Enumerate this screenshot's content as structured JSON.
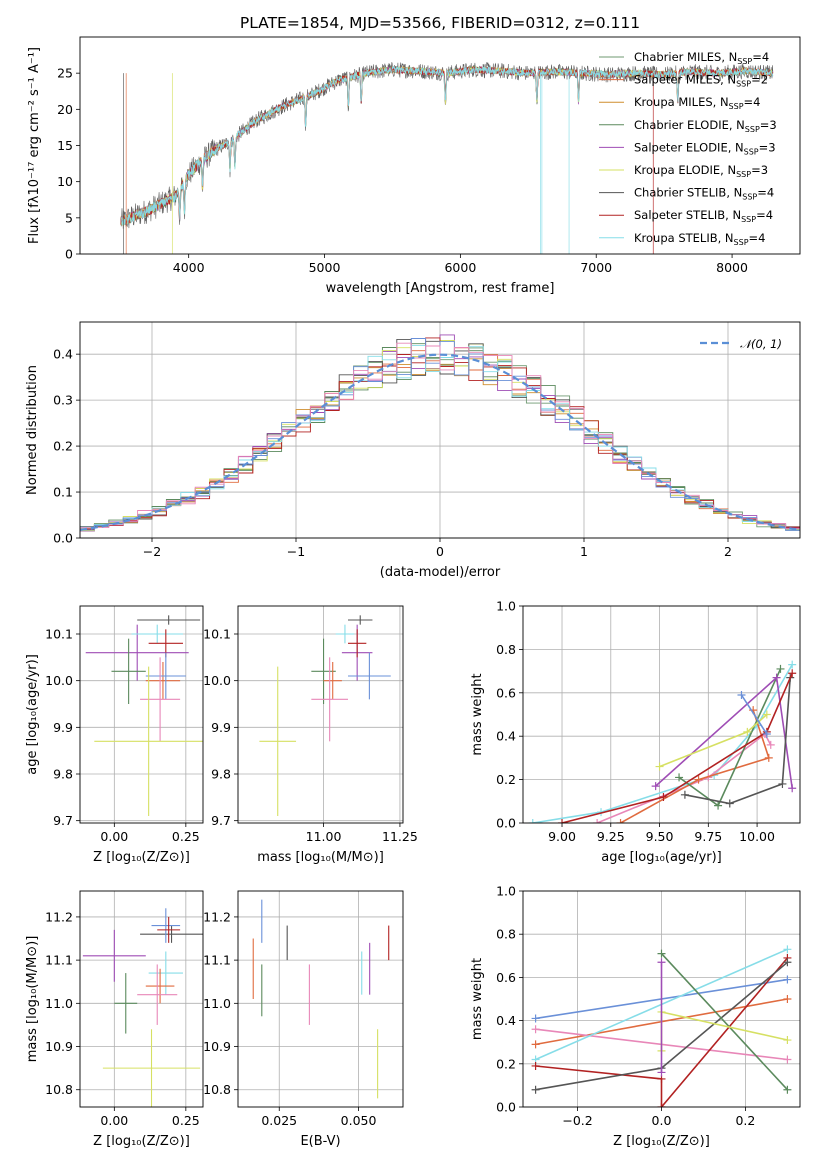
{
  "figure_title": "PLATE=1854, MJD=53566, FIBERID=0312, z=0.111",
  "colors": {
    "models": [
      "#6f9a72",
      "#e06b3f",
      "#cf8e2e",
      "#5b8a5d",
      "#9f4db5",
      "#d6e063",
      "#555555",
      "#b22222",
      "#86dde8"
    ],
    "extra_blue": "#6a90d8",
    "extra_pink": "#e887b8",
    "gauss": "#5a8fd6"
  },
  "chart_data": [
    {
      "id": "spectrum",
      "type": "line",
      "xlabel": "wavelength [Angstrom, rest frame]",
      "ylabel": "Flux [fλ10⁻¹⁷ erg cm⁻² s⁻¹ A⁻¹]",
      "xlim": [
        3200,
        8500
      ],
      "ylim": [
        0,
        30
      ],
      "xticks": [
        "4000",
        "5000",
        "6000",
        "7000",
        "8000"
      ],
      "yticks": [
        "0",
        "5",
        "10",
        "15",
        "20",
        "25"
      ],
      "legend_position": "right",
      "x": [
        3500,
        3700,
        3900,
        4000,
        4100,
        4200,
        4300,
        4500,
        4700,
        4900,
        5100,
        5300,
        5500,
        5700,
        5900,
        6100,
        6300,
        6500,
        6700,
        6900,
        7100,
        7300,
        7500,
        7700,
        7900,
        8100,
        8300
      ],
      "series": [
        {
          "name": "Chabrier MILES, N_SSP=4"
        },
        {
          "name": "Salpeter MILES, N_SSP=2"
        },
        {
          "name": "Kroupa MILES, N_SSP=4"
        },
        {
          "name": "Chabrier ELODIE, N_SSP=3"
        },
        {
          "name": "Salpeter ELODIE, N_SSP=3"
        },
        {
          "name": "Kroupa ELODIE, N_SSP=3"
        },
        {
          "name": "Chabrier STELIB, N_SSP=4"
        },
        {
          "name": "Salpeter STELIB, N_SSP=4"
        },
        {
          "name": "Kroupa STELIB, N_SSP=4"
        }
      ],
      "continuum": [
        4.5,
        6.0,
        8.0,
        11.0,
        13.0,
        14.5,
        15.5,
        18.5,
        20.5,
        22.0,
        24.0,
        25.0,
        25.5,
        25.3,
        25.0,
        25.5,
        25.3,
        25.0,
        25.2,
        25.0,
        24.8,
        25.0,
        24.8,
        25.2,
        25.0,
        25.3,
        25.0
      ]
    },
    {
      "id": "residuals",
      "type": "bar",
      "xlabel": "(data-model)/error",
      "ylabel": "Normed distribution",
      "xlim": [
        -2.5,
        2.5
      ],
      "ylim": [
        0,
        0.47
      ],
      "xticks": [
        "−2",
        "−1",
        "0",
        "1",
        "2"
      ],
      "yticks": [
        "0.0",
        "0.1",
        "0.2",
        "0.3",
        "0.4"
      ],
      "grid": true,
      "bin_width": 0.1,
      "legend": "𝒩(0, 1)",
      "gaussian": {
        "mean": 0,
        "sigma": 1
      }
    },
    {
      "id": "age_vs_Z",
      "type": "scatter",
      "xlabel": "Z [log₁₀(Z/Z⊙)]",
      "ylabel": "age  [log₁₀(age/yr)]",
      "xlim": [
        -0.12,
        0.31
      ],
      "ylim": [
        9.695,
        10.16
      ],
      "xticks": [
        "0.00",
        "0.25"
      ],
      "yticks": [
        "9.7",
        "9.8",
        "9.9",
        "10.0",
        "10.1"
      ],
      "grid": true,
      "points": [
        {
          "x": 0.08,
          "y": 10.06,
          "xerr": 0.18,
          "yerr": 0.06,
          "c": 4
        },
        {
          "x": 0.05,
          "y": 10.02,
          "xerr": 0.06,
          "yerr": 0.07,
          "c": 3
        },
        {
          "x": 0.19,
          "y": 10.13,
          "xerr": 0.11,
          "yerr": 0.01,
          "c": 6
        },
        {
          "x": 0.15,
          "y": 10.1,
          "xerr": 0.09,
          "yerr": 0.02,
          "c": 8
        },
        {
          "x": 0.18,
          "y": 10.08,
          "xerr": 0.06,
          "yerr": 0.03,
          "c": 7
        },
        {
          "x": 0.17,
          "y": 10.0,
          "xerr": 0.06,
          "yerr": 0.04,
          "c": 1
        },
        {
          "x": 0.18,
          "y": 10.01,
          "xerr": 0.07,
          "yerr": 0.05,
          "c": 9
        },
        {
          "x": 0.16,
          "y": 9.96,
          "xerr": 0.07,
          "yerr": 0.09,
          "c": 10
        },
        {
          "x": 0.12,
          "y": 9.87,
          "xerr": 0.19,
          "yerr": 0.16,
          "c": 5
        }
      ]
    },
    {
      "id": "age_vs_mass",
      "type": "scatter",
      "xlabel": "mass [log₁₀(M/M⊙)]",
      "ylabel": "",
      "xlim": [
        10.72,
        11.26
      ],
      "ylim": [
        9.695,
        10.16
      ],
      "xticks": [
        "11.00",
        "11.25"
      ],
      "yticks": [
        "9.7",
        "9.8",
        "9.9",
        "10.0",
        "10.1"
      ],
      "grid": true,
      "points": [
        {
          "x": 11.11,
          "y": 10.06,
          "xerr": 0.05,
          "yerr": 0.06,
          "c": 4
        },
        {
          "x": 11.0,
          "y": 10.02,
          "xerr": 0.04,
          "yerr": 0.07,
          "c": 3
        },
        {
          "x": 11.12,
          "y": 10.13,
          "xerr": 0.04,
          "yerr": 0.01,
          "c": 6
        },
        {
          "x": 11.07,
          "y": 10.1,
          "xerr": 0.03,
          "yerr": 0.02,
          "c": 8
        },
        {
          "x": 11.11,
          "y": 10.08,
          "xerr": 0.03,
          "yerr": 0.03,
          "c": 7
        },
        {
          "x": 11.03,
          "y": 10.0,
          "xerr": 0.03,
          "yerr": 0.04,
          "c": 1
        },
        {
          "x": 11.15,
          "y": 10.01,
          "xerr": 0.07,
          "yerr": 0.05,
          "c": 9
        },
        {
          "x": 11.02,
          "y": 9.96,
          "xerr": 0.06,
          "yerr": 0.09,
          "c": 10
        },
        {
          "x": 10.85,
          "y": 9.87,
          "xerr": 0.06,
          "yerr": 0.16,
          "c": 5
        }
      ]
    },
    {
      "id": "weight_vs_age",
      "type": "line",
      "xlabel": "age  [log₁₀(age/yr)]",
      "ylabel": "mass weight",
      "xlim": [
        8.8,
        10.22
      ],
      "ylim": [
        0,
        1.0
      ],
      "xticks": [
        "9.00",
        "9.25",
        "9.50",
        "9.75",
        "10.00"
      ],
      "yticks": [
        "0.0",
        "0.2",
        "0.4",
        "0.6",
        "0.8",
        "1.0"
      ],
      "grid": true,
      "series": [
        {
          "c": 8,
          "points": [
            [
              8.85,
              0.0
            ],
            [
              9.2,
              0.05
            ],
            [
              9.78,
              0.22
            ],
            [
              10.0,
              0.45
            ],
            [
              10.18,
              0.73
            ]
          ]
        },
        {
          "c": 10,
          "points": [
            [
              9.18,
              0.0
            ],
            [
              9.75,
              0.21
            ],
            [
              10.04,
              0.41
            ],
            [
              10.07,
              0.36
            ]
          ]
        },
        {
          "c": 1,
          "points": [
            [
              9.3,
              0.0
            ],
            [
              9.7,
              0.2
            ],
            [
              10.06,
              0.3
            ],
            [
              9.98,
              0.52
            ]
          ]
        },
        {
          "c": 3,
          "points": [
            [
              9.6,
              0.21
            ],
            [
              9.8,
              0.08
            ],
            [
              10.12,
              0.71
            ]
          ]
        },
        {
          "c": 4,
          "points": [
            [
              9.48,
              0.17
            ],
            [
              10.1,
              0.67
            ],
            [
              10.18,
              0.16
            ]
          ]
        },
        {
          "c": 5,
          "points": [
            [
              9.5,
              0.26
            ],
            [
              9.95,
              0.42
            ],
            [
              10.05,
              0.5
            ]
          ]
        },
        {
          "c": 6,
          "points": [
            [
              9.63,
              0.13
            ],
            [
              9.86,
              0.09
            ],
            [
              10.13,
              0.18
            ],
            [
              10.17,
              0.67
            ]
          ]
        },
        {
          "c": 7,
          "points": [
            [
              9.0,
              0.0
            ],
            [
              9.52,
              0.12
            ],
            [
              10.05,
              0.42
            ],
            [
              10.18,
              0.69
            ]
          ]
        },
        {
          "c": 9,
          "points": [
            [
              9.92,
              0.59
            ],
            [
              10.05,
              0.41
            ]
          ]
        }
      ]
    },
    {
      "id": "mass_vs_Z",
      "type": "scatter",
      "xlabel": "Z [log₁₀(Z/Z⊙)]",
      "ylabel": "mass [log₁₀(M/M⊙)]",
      "xlim": [
        -0.12,
        0.31
      ],
      "ylim": [
        10.76,
        11.26
      ],
      "xticks": [
        "0.00",
        "0.25"
      ],
      "yticks": [
        "10.8",
        "10.9",
        "11.0",
        "11.1",
        "11.2"
      ],
      "grid": true,
      "points": [
        {
          "x": 0.0,
          "y": 11.11,
          "xerr": 0.11,
          "yerr": 0.06,
          "c": 4
        },
        {
          "x": 0.04,
          "y": 11.0,
          "xerr": 0.04,
          "yerr": 0.07,
          "c": 3
        },
        {
          "x": 0.2,
          "y": 11.16,
          "xerr": 0.11,
          "yerr": 0.02,
          "c": 6
        },
        {
          "x": 0.18,
          "y": 11.18,
          "xerr": 0.05,
          "yerr": 0.04,
          "c": 9
        },
        {
          "x": 0.19,
          "y": 11.17,
          "xerr": 0.04,
          "yerr": 0.03,
          "c": 7
        },
        {
          "x": 0.18,
          "y": 11.07,
          "xerr": 0.06,
          "yerr": 0.05,
          "c": 8
        },
        {
          "x": 0.16,
          "y": 11.04,
          "xerr": 0.05,
          "yerr": 0.04,
          "c": 1
        },
        {
          "x": 0.15,
          "y": 11.02,
          "xerr": 0.07,
          "yerr": 0.07,
          "c": 10
        },
        {
          "x": 0.13,
          "y": 10.85,
          "xerr": 0.17,
          "yerr": 0.09,
          "c": 5
        }
      ]
    },
    {
      "id": "mass_vs_EBV",
      "type": "scatter",
      "xlabel": "E(B-V)",
      "ylabel": "",
      "xlim": [
        0.012,
        0.064
      ],
      "ylim": [
        10.76,
        11.26
      ],
      "xticks": [
        "0.025",
        "0.050"
      ],
      "yticks": [
        "10.8",
        "10.9",
        "11.0",
        "11.1",
        "11.2"
      ],
      "grid": true,
      "points": [
        {
          "x": 0.0168,
          "y": 11.08,
          "xerr": 0,
          "yerr": 0.07,
          "c": 1
        },
        {
          "x": 0.0195,
          "y": 11.03,
          "xerr": 0,
          "yerr": 0.06,
          "c": 3
        },
        {
          "x": 0.0195,
          "y": 11.19,
          "xerr": 0,
          "yerr": 0.05,
          "c": 9
        },
        {
          "x": 0.0275,
          "y": 11.14,
          "xerr": 0,
          "yerr": 0.04,
          "c": 6
        },
        {
          "x": 0.0345,
          "y": 11.02,
          "xerr": 0,
          "yerr": 0.07,
          "c": 10
        },
        {
          "x": 0.051,
          "y": 11.07,
          "xerr": 0,
          "yerr": 0.05,
          "c": 8
        },
        {
          "x": 0.0535,
          "y": 11.08,
          "xerr": 0,
          "yerr": 0.06,
          "c": 4
        },
        {
          "x": 0.056,
          "y": 10.86,
          "xerr": 0,
          "yerr": 0.08,
          "c": 5
        },
        {
          "x": 0.0595,
          "y": 11.14,
          "xerr": 0,
          "yerr": 0.04,
          "c": 7
        }
      ]
    },
    {
      "id": "weight_vs_Z",
      "type": "line",
      "xlabel": "Z [log₁₀(Z/Z⊙)]",
      "ylabel": "mass weight",
      "xlim": [
        -0.33,
        0.33
      ],
      "ylim": [
        0,
        1.0
      ],
      "xticks": [
        "−0.2",
        "0.0",
        "0.2"
      ],
      "yticks": [
        "0.0",
        "0.2",
        "0.4",
        "0.6",
        "0.8",
        "1.0"
      ],
      "grid": true,
      "series": [
        {
          "c": 9,
          "points": [
            [
              -0.3,
              0.41
            ],
            [
              0.3,
              0.59
            ]
          ]
        },
        {
          "c": 1,
          "points": [
            [
              -0.3,
              0.29
            ],
            [
              0.3,
              0.5
            ]
          ]
        },
        {
          "c": 10,
          "points": [
            [
              -0.3,
              0.36
            ],
            [
              0.3,
              0.22
            ]
          ]
        },
        {
          "c": 8,
          "points": [
            [
              -0.3,
              0.22
            ],
            [
              0.3,
              0.73
            ]
          ]
        },
        {
          "c": 7,
          "points": [
            [
              -0.3,
              0.19
            ],
            [
              0.0,
              0.13
            ],
            [
              0.0,
              0.0
            ],
            [
              0.3,
              0.69
            ]
          ]
        },
        {
          "c": 6,
          "points": [
            [
              -0.3,
              0.08
            ],
            [
              0.0,
              0.18
            ],
            [
              0.3,
              0.67
            ]
          ]
        },
        {
          "c": 3,
          "points": [
            [
              0.0,
              0.71
            ],
            [
              0.3,
              0.08
            ]
          ]
        },
        {
          "c": 5,
          "points": [
            [
              0.0,
              0.26
            ],
            [
              0.0,
              0.44
            ],
            [
              0.3,
              0.31
            ]
          ]
        },
        {
          "c": 4,
          "points": [
            [
              0.0,
              0.67
            ],
            [
              0.0,
              0.16
            ]
          ]
        }
      ]
    }
  ]
}
